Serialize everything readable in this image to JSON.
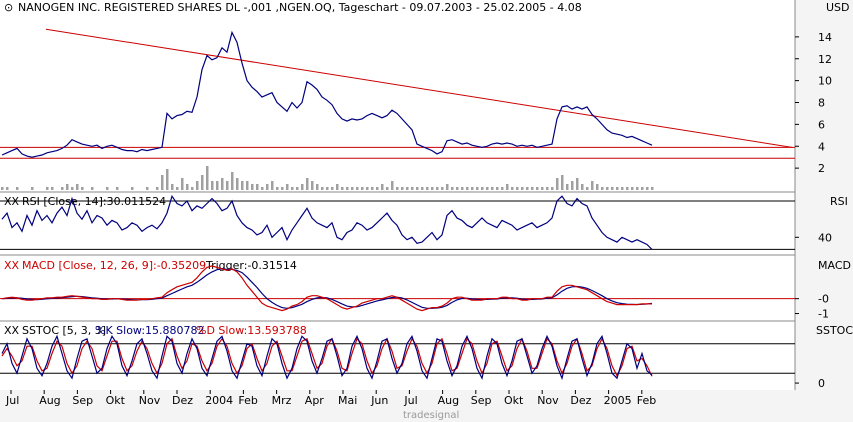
{
  "colors": {
    "price": "#000080",
    "volume": "#a0a0a0",
    "trend": "#cc0000",
    "macd": "#cc0000",
    "trigger": "#000080",
    "k": "#000080",
    "d": "#cc0000",
    "grid": "#000000",
    "background": "#ffffff"
  },
  "icons": {
    "marker": "open-circle-icon",
    "indicator": "xx-icon"
  },
  "watermark": "tradesignal",
  "chart_data": [
    {
      "type": "line",
      "title": "NANOGEN INC. REGISTERED SHARES DL -,001 ,NGEN.OQ, Tageschart - 09.07.2003 - 25.02.2005 - 4.08",
      "ylabel": "USD",
      "ylim": [
        0,
        16
      ],
      "yticks": [
        "2",
        "4",
        "6",
        "8",
        "10",
        "12",
        "14"
      ],
      "xlabels": [
        "Jul",
        "Aug",
        "Sep",
        "Okt",
        "Nov",
        "Dez",
        "2004",
        "Feb",
        "Mrz",
        "Apr",
        "Mai",
        "Jun",
        "Jul",
        "Aug",
        "Sep",
        "Okt",
        "Nov",
        "Dez",
        "2005",
        "Feb"
      ],
      "x": [
        0,
        5,
        10,
        15,
        20,
        25,
        30,
        35,
        40,
        45,
        50,
        55,
        60,
        65,
        70,
        75,
        80,
        85,
        90,
        95,
        100,
        105,
        110,
        115,
        120,
        125,
        130,
        135,
        140,
        145,
        150,
        155,
        160,
        165,
        170,
        175,
        180,
        185,
        190,
        195,
        200,
        205,
        210,
        215,
        220,
        225,
        230,
        235,
        240,
        245,
        250,
        255,
        260,
        265,
        270,
        275,
        280,
        285,
        290,
        295,
        300,
        305,
        310,
        315,
        320,
        325,
        330,
        335,
        340,
        345,
        350,
        355,
        360,
        365,
        370,
        375,
        380,
        385,
        390,
        395,
        400,
        405,
        410,
        415,
        420,
        425,
        430,
        435,
        440,
        445,
        450,
        455,
        460,
        465,
        470,
        475,
        480,
        485,
        490,
        495,
        500,
        505,
        510,
        515,
        520,
        525,
        530,
        535,
        540,
        545,
        550,
        555,
        560,
        565,
        570,
        575,
        580,
        585,
        590,
        595,
        600,
        605,
        610,
        615,
        620,
        625,
        630,
        635,
        640,
        645,
        650
      ],
      "values": [
        3.2,
        3.4,
        3.6,
        3.8,
        3.3,
        3.1,
        3.0,
        3.1,
        3.2,
        3.4,
        3.5,
        3.6,
        3.8,
        4.1,
        4.6,
        4.4,
        4.2,
        4.1,
        4.0,
        4.1,
        3.8,
        4.0,
        4.1,
        3.9,
        3.7,
        3.6,
        3.6,
        3.5,
        3.7,
        3.6,
        3.7,
        3.8,
        3.9,
        7.0,
        6.5,
        6.8,
        6.9,
        7.2,
        7.1,
        8.5,
        11.0,
        12.3,
        11.9,
        12.1,
        13.0,
        12.6,
        14.4,
        13.5,
        11.6,
        10.0,
        9.4,
        9.0,
        8.5,
        8.7,
        8.9,
        8.0,
        7.6,
        7.2,
        8.0,
        7.5,
        8.0,
        9.9,
        9.6,
        9.2,
        8.5,
        8.2,
        7.8,
        7.0,
        6.5,
        6.3,
        6.5,
        6.4,
        6.5,
        6.8,
        7.0,
        6.8,
        6.6,
        6.8,
        7.3,
        7.0,
        6.5,
        6.0,
        5.5,
        4.2,
        4.0,
        3.8,
        3.6,
        3.3,
        3.5,
        4.5,
        4.6,
        4.4,
        4.2,
        4.3,
        4.1,
        4.0,
        3.9,
        4.0,
        4.2,
        4.3,
        4.2,
        4.3,
        4.2,
        4.0,
        4.1,
        4.0,
        4.1,
        3.9,
        4.0,
        4.1,
        4.2,
        6.5,
        7.6,
        7.7,
        7.4,
        7.6,
        7.4,
        7.6,
        6.9,
        6.5,
        6.0,
        5.5,
        5.2,
        5.1,
        5.0,
        4.8,
        4.9,
        4.7,
        4.5,
        4.3,
        4.1
      ],
      "volume": [
        1,
        1,
        0,
        1,
        0,
        0,
        1,
        0,
        0,
        1,
        1,
        0,
        1,
        2,
        1,
        2,
        1,
        0,
        1,
        0,
        0,
        1,
        0,
        1,
        0,
        0,
        1,
        0,
        0,
        1,
        0,
        1,
        5,
        7,
        2,
        1,
        4,
        2,
        1,
        3,
        5,
        8,
        3,
        3,
        4,
        3,
        6,
        4,
        3,
        3,
        2,
        2,
        1,
        2,
        3,
        1,
        1,
        2,
        1,
        1,
        2,
        4,
        3,
        2,
        1,
        1,
        1,
        2,
        1,
        1,
        1,
        1,
        1,
        1,
        1,
        1,
        2,
        1,
        3,
        1,
        1,
        1,
        1,
        1,
        1,
        1,
        1,
        1,
        1,
        2,
        1,
        1,
        1,
        1,
        1,
        1,
        1,
        1,
        1,
        1,
        1,
        2,
        1,
        1,
        1,
        1,
        1,
        1,
        1,
        1,
        1,
        4,
        5,
        2,
        3,
        4,
        2,
        1,
        3,
        2,
        1,
        1,
        1,
        1,
        1,
        1,
        1,
        1,
        1,
        1,
        1
      ],
      "trendline": {
        "x": [
          44,
          790
        ],
        "y": [
          14.7,
          3.9
        ]
      },
      "horizontal_lines": [
        3.9,
        2.9
      ]
    },
    {
      "type": "line",
      "title": "RSI [Close, 14]:30.011524",
      "ylabel": "RSI",
      "ylim": [
        27,
        75
      ],
      "yticks": [
        "40"
      ],
      "levels": [
        30,
        70
      ],
      "x": [
        0,
        5,
        10,
        15,
        20,
        25,
        30,
        35,
        40,
        45,
        50,
        55,
        60,
        65,
        70,
        75,
        80,
        85,
        90,
        95,
        100,
        105,
        110,
        115,
        120,
        125,
        130,
        135,
        140,
        145,
        150,
        155,
        160,
        165,
        170,
        175,
        180,
        185,
        190,
        195,
        200,
        205,
        210,
        215,
        220,
        225,
        230,
        235,
        240,
        245,
        250,
        255,
        260,
        265,
        270,
        275,
        280,
        285,
        290,
        295,
        300,
        305,
        310,
        315,
        320,
        325,
        330,
        335,
        340,
        345,
        350,
        355,
        360,
        365,
        370,
        375,
        380,
        385,
        390,
        395,
        400,
        405,
        410,
        415,
        420,
        425,
        430,
        435,
        440,
        445,
        450,
        455,
        460,
        465,
        470,
        475,
        480,
        485,
        490,
        495,
        500,
        505,
        510,
        515,
        520,
        525,
        530,
        535,
        540,
        545,
        550,
        555,
        560,
        565,
        570,
        575,
        580,
        585,
        590,
        595,
        600,
        605,
        610,
        615,
        620,
        625,
        630,
        635,
        640,
        645,
        650
      ],
      "values": [
        55,
        60,
        48,
        52,
        45,
        58,
        50,
        62,
        54,
        58,
        52,
        60,
        65,
        58,
        72,
        60,
        55,
        62,
        52,
        58,
        56,
        50,
        54,
        52,
        46,
        48,
        52,
        50,
        45,
        48,
        50,
        47,
        52,
        60,
        74,
        68,
        66,
        70,
        62,
        66,
        64,
        68,
        72,
        68,
        62,
        64,
        70,
        58,
        52,
        48,
        46,
        42,
        44,
        50,
        40,
        44,
        48,
        38,
        46,
        52,
        58,
        64,
        56,
        52,
        50,
        48,
        52,
        40,
        38,
        44,
        46,
        52,
        50,
        46,
        48,
        52,
        56,
        60,
        54,
        50,
        42,
        38,
        40,
        35,
        36,
        40,
        44,
        38,
        42,
        58,
        62,
        56,
        54,
        50,
        48,
        52,
        56,
        52,
        50,
        48,
        54,
        52,
        50,
        46,
        48,
        50,
        52,
        48,
        50,
        52,
        56,
        70,
        74,
        68,
        66,
        72,
        68,
        66,
        56,
        50,
        44,
        40,
        38,
        36,
        40,
        38,
        36,
        38,
        36,
        34,
        30
      ]
    },
    {
      "type": "line",
      "title": "MACD [Close, 12, 26, 9]:-0.35209",
      "trigger_label": "Trigger:-0.31514",
      "ylabel": "MACD",
      "ylim": [
        -1.3,
        2.6
      ],
      "yticks": [
        "-0",
        "-1"
      ],
      "series": [
        {
          "name": "MACD",
          "values": [
            0.0,
            0.05,
            0.1,
            0.05,
            -0.05,
            -0.1,
            -0.1,
            -0.05,
            0.0,
            0.05,
            0.05,
            0.1,
            0.1,
            0.15,
            0.2,
            0.15,
            0.1,
            0.05,
            0.0,
            0.0,
            -0.05,
            -0.05,
            0.0,
            0.0,
            -0.05,
            -0.1,
            -0.1,
            -0.1,
            -0.05,
            -0.05,
            0.0,
            0.05,
            0.1,
            0.4,
            0.6,
            0.8,
            0.9,
            1.0,
            1.1,
            1.4,
            1.8,
            2.1,
            2.2,
            2.1,
            2.0,
            1.9,
            2.0,
            1.8,
            1.4,
            0.9,
            0.5,
            0.1,
            -0.3,
            -0.5,
            -0.6,
            -0.7,
            -0.8,
            -0.7,
            -0.5,
            -0.4,
            -0.2,
            0.1,
            0.2,
            0.2,
            0.1,
            0.0,
            -0.2,
            -0.4,
            -0.6,
            -0.7,
            -0.6,
            -0.5,
            -0.3,
            -0.2,
            -0.1,
            0.0,
            0.0,
            0.1,
            0.2,
            0.1,
            -0.1,
            -0.3,
            -0.5,
            -0.7,
            -0.8,
            -0.7,
            -0.6,
            -0.6,
            -0.5,
            -0.3,
            0.0,
            0.1,
            0.1,
            0.0,
            -0.1,
            -0.1,
            -0.1,
            0.0,
            0.0,
            0.0,
            0.1,
            0.1,
            0.0,
            0.0,
            -0.1,
            -0.1,
            0.0,
            0.0,
            0.0,
            0.1,
            0.1,
            0.5,
            0.8,
            0.9,
            0.9,
            0.8,
            0.7,
            0.6,
            0.4,
            0.2,
            0.0,
            -0.2,
            -0.3,
            -0.4,
            -0.4,
            -0.4,
            -0.4,
            -0.4,
            -0.35,
            -0.35,
            -0.35
          ]
        },
        {
          "name": "Trigger",
          "values": [
            0.0,
            0.02,
            0.05,
            0.06,
            0.03,
            -0.02,
            -0.05,
            -0.06,
            -0.04,
            -0.01,
            0.02,
            0.05,
            0.07,
            0.1,
            0.14,
            0.16,
            0.14,
            0.1,
            0.06,
            0.03,
            0.0,
            -0.02,
            -0.02,
            -0.01,
            -0.02,
            -0.05,
            -0.07,
            -0.08,
            -0.07,
            -0.06,
            -0.04,
            0.0,
            0.04,
            0.2,
            0.35,
            0.5,
            0.65,
            0.8,
            0.9,
            1.1,
            1.35,
            1.6,
            1.8,
            1.95,
            2.0,
            1.97,
            1.97,
            1.9,
            1.75,
            1.45,
            1.1,
            0.75,
            0.35,
            0.0,
            -0.25,
            -0.45,
            -0.6,
            -0.65,
            -0.6,
            -0.5,
            -0.38,
            -0.2,
            -0.05,
            0.05,
            0.08,
            0.05,
            -0.05,
            -0.2,
            -0.35,
            -0.5,
            -0.55,
            -0.55,
            -0.45,
            -0.35,
            -0.25,
            -0.15,
            -0.08,
            0.0,
            0.08,
            0.1,
            0.05,
            -0.08,
            -0.25,
            -0.42,
            -0.58,
            -0.65,
            -0.65,
            -0.63,
            -0.58,
            -0.45,
            -0.25,
            -0.08,
            0.02,
            0.03,
            -0.02,
            -0.05,
            -0.07,
            -0.05,
            -0.03,
            -0.02,
            0.03,
            0.06,
            0.05,
            0.03,
            -0.03,
            -0.06,
            -0.05,
            -0.03,
            -0.02,
            0.03,
            0.06,
            0.25,
            0.5,
            0.7,
            0.8,
            0.82,
            0.78,
            0.7,
            0.55,
            0.38,
            0.2,
            0.0,
            -0.15,
            -0.27,
            -0.33,
            -0.37,
            -0.38,
            -0.39,
            -0.38,
            -0.36,
            -0.32
          ]
        }
      ]
    },
    {
      "type": "line",
      "title": "SSTOC [5, 3, 3]",
      "k_label": "%K Slow:15.880782",
      "d_label": "%D Slow:13.593788",
      "ylabel": "SSTOC",
      "ylim": [
        -10,
        120
      ],
      "yticks": [
        "0"
      ],
      "levels": [
        20,
        80
      ],
      "series": [
        {
          "name": "%K Slow",
          "values": [
            60,
            80,
            40,
            20,
            55,
            90,
            70,
            30,
            15,
            40,
            75,
            95,
            60,
            25,
            10,
            50,
            85,
            90,
            55,
            20,
            30,
            70,
            95,
            80,
            35,
            15,
            45,
            80,
            90,
            60,
            25,
            10,
            55,
            95,
            85,
            40,
            20,
            60,
            90,
            70,
            30,
            15,
            50,
            85,
            95,
            65,
            25,
            10,
            45,
            80,
            75,
            35,
            15,
            55,
            90,
            80,
            40,
            10,
            30,
            70,
            95,
            85,
            45,
            20,
            50,
            85,
            90,
            55,
            15,
            30,
            75,
            95,
            70,
            30,
            10,
            45,
            85,
            90,
            50,
            20,
            40,
            80,
            95,
            65,
            25,
            10,
            50,
            90,
            85,
            45,
            15,
            35,
            75,
            95,
            70,
            30,
            10,
            55,
            90,
            80,
            40,
            15,
            45,
            85,
            90,
            55,
            20,
            35,
            70,
            95,
            75,
            35,
            10,
            50,
            85,
            90,
            50,
            15,
            40,
            80,
            95,
            60,
            20,
            10,
            45,
            80,
            70,
            30,
            60,
            25,
            16
          ]
        },
        {
          "name": "%D Slow",
          "values": [
            55,
            70,
            55,
            35,
            45,
            75,
            75,
            45,
            25,
            30,
            60,
            85,
            75,
            40,
            20,
            35,
            70,
            85,
            70,
            35,
            25,
            55,
            85,
            85,
            50,
            25,
            35,
            65,
            85,
            70,
            40,
            20,
            40,
            80,
            90,
            55,
            30,
            45,
            80,
            75,
            45,
            25,
            40,
            75,
            90,
            75,
            40,
            20,
            35,
            70,
            80,
            50,
            25,
            40,
            75,
            85,
            55,
            25,
            25,
            55,
            85,
            90,
            60,
            30,
            40,
            75,
            90,
            65,
            30,
            25,
            60,
            90,
            80,
            45,
            20,
            35,
            70,
            90,
            65,
            30,
            35,
            65,
            90,
            75,
            40,
            20,
            40,
            80,
            90,
            60,
            25,
            30,
            60,
            90,
            80,
            45,
            20,
            40,
            80,
            85,
            55,
            25,
            35,
            70,
            90,
            65,
            30,
            30,
            60,
            90,
            80,
            45,
            20,
            40,
            75,
            90,
            60,
            25,
            35,
            70,
            90,
            70,
            35,
            15,
            35,
            70,
            75,
            45,
            50,
            35,
            14
          ]
        }
      ]
    }
  ]
}
